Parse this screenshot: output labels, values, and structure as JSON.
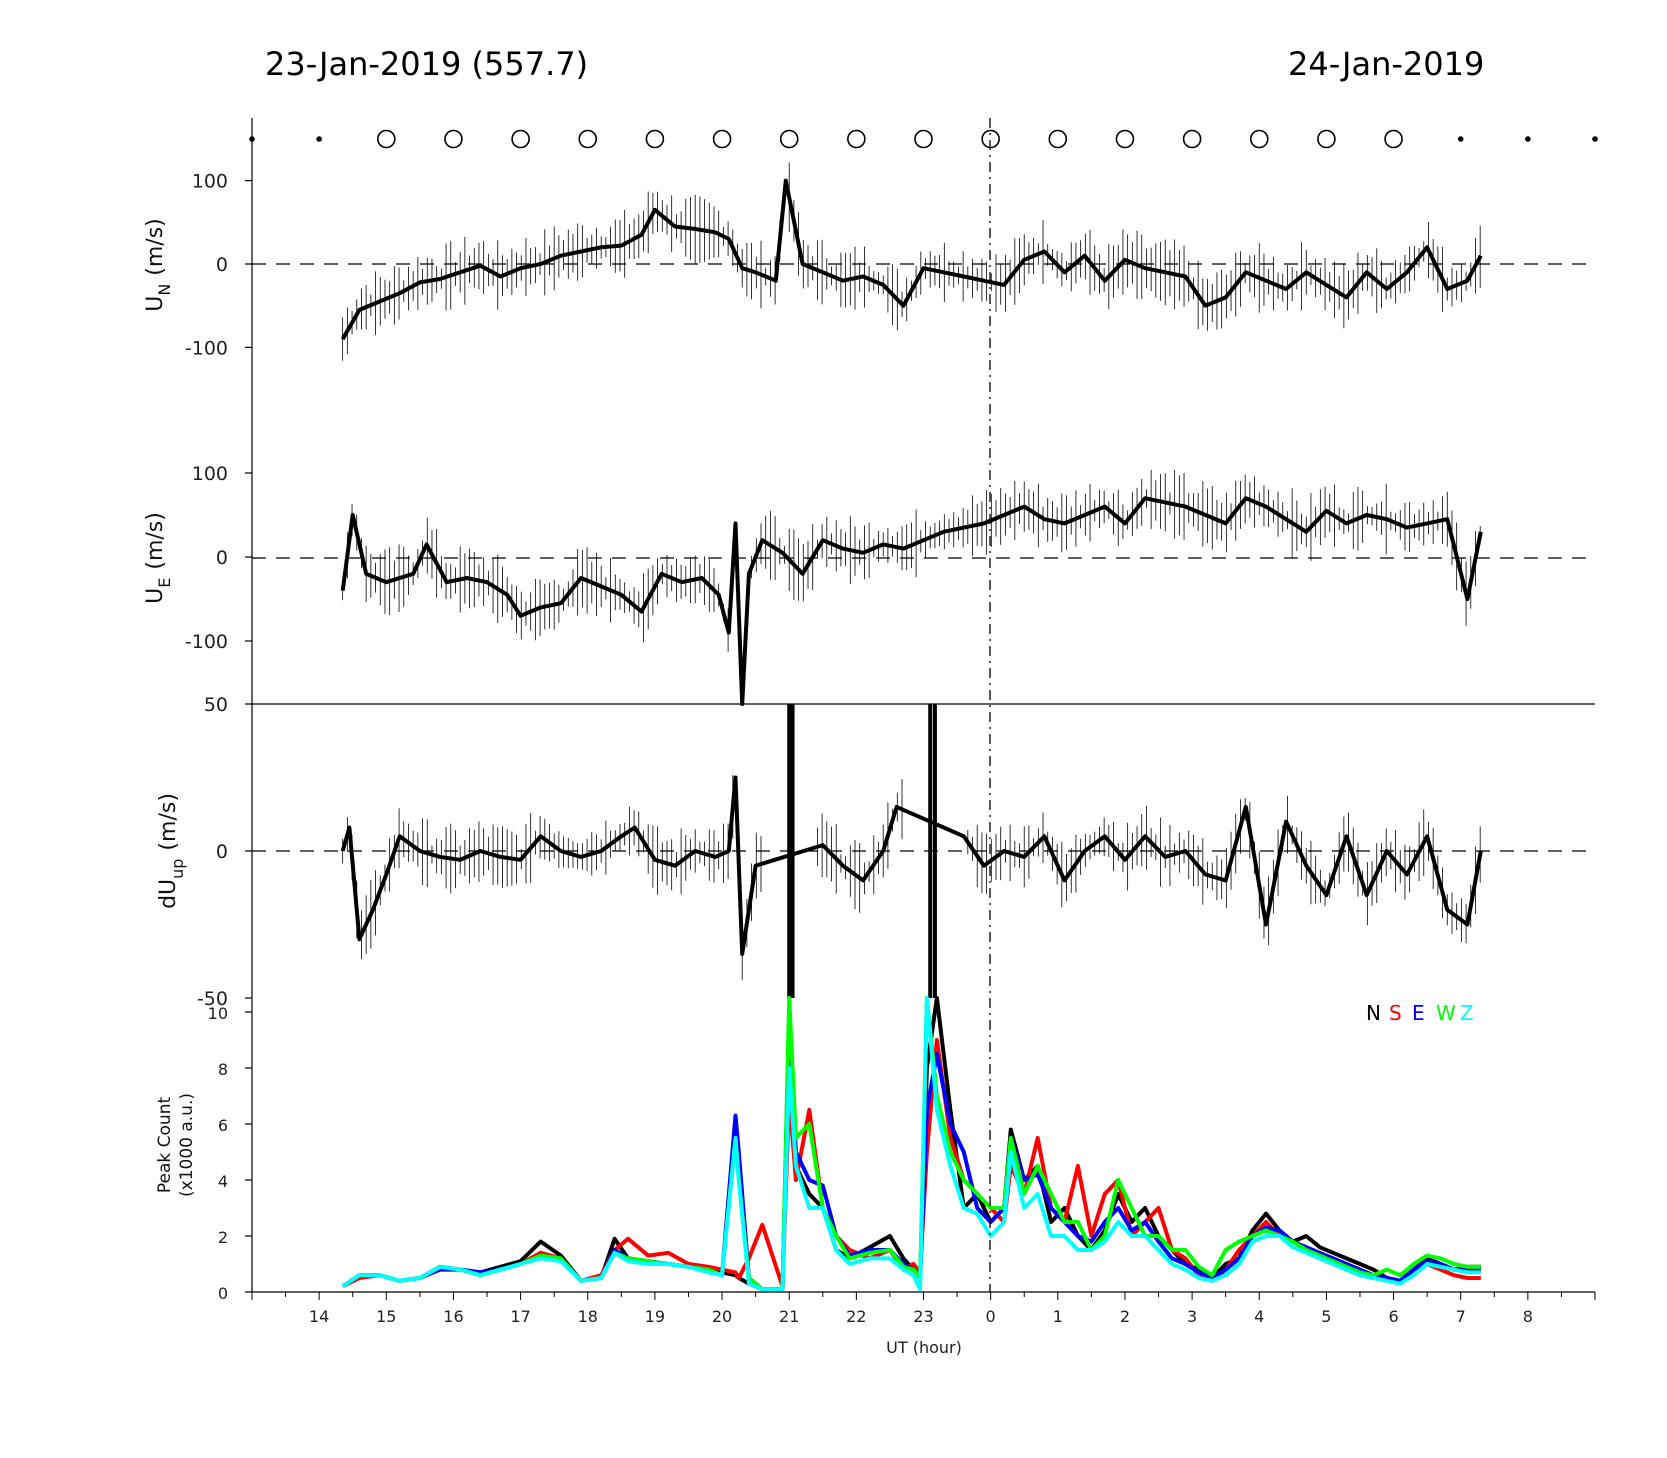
{
  "header": {
    "left_date": "23-Jan-2019 (557.7)",
    "right_date": "24-Jan-2019"
  },
  "chart_data": [
    {
      "type": "line",
      "panel": "U_N",
      "ylabel": "U_N (m/s)",
      "ylabel_main": "U",
      "ylabel_sub": "N",
      "ylabel_unit": "(m/s)",
      "ylim": [
        -175,
        175
      ],
      "yticks": [
        100,
        0,
        -100
      ],
      "ytick_labels": [
        "100",
        "0",
        "-100"
      ],
      "zero_line": "dashed",
      "series": [
        {
          "color": "#000000",
          "x": [
            14.35,
            14.6,
            14.9,
            15.2,
            15.5,
            15.8,
            16.1,
            16.4,
            16.7,
            17.0,
            17.3,
            17.6,
            17.9,
            18.2,
            18.5,
            18.8,
            19.0,
            19.3,
            19.6,
            19.9,
            20.1,
            20.3,
            20.5,
            20.8,
            20.95,
            21.2,
            21.5,
            21.8,
            22.1,
            22.4,
            22.7,
            23.0,
            23.3,
            23.6,
            23.9,
            24.2,
            24.5,
            24.8,
            25.1,
            25.4,
            25.7,
            26.0,
            26.3,
            26.6,
            26.9,
            27.2,
            27.5,
            27.8,
            28.1,
            28.4,
            28.7,
            29.0,
            29.3,
            29.6,
            29.9,
            30.2,
            30.5,
            30.8,
            31.1,
            31.3
          ],
          "y": [
            -90,
            -55,
            -45,
            -35,
            -22,
            -18,
            -10,
            -2,
            -15,
            -5,
            0,
            10,
            15,
            20,
            22,
            35,
            65,
            45,
            42,
            38,
            30,
            -5,
            -10,
            -20,
            100,
            0,
            -10,
            -20,
            -15,
            -25,
            -50,
            -5,
            -10,
            -15,
            -20,
            -25,
            5,
            15,
            -10,
            10,
            -20,
            5,
            -5,
            -10,
            -15,
            -50,
            -40,
            -10,
            -20,
            -30,
            -10,
            -25,
            -40,
            -10,
            -30,
            -10,
            20,
            -30,
            -20,
            10
          ]
        }
      ]
    },
    {
      "type": "line",
      "panel": "U_E",
      "ylabel": "U_E (m/s)",
      "ylabel_main": "U",
      "ylabel_sub": "E",
      "ylabel_unit": "(m/s)",
      "ylim": [
        -175,
        175
      ],
      "yticks": [
        100,
        0,
        -100
      ],
      "ytick_labels": [
        "100",
        "0",
        "-100"
      ],
      "zero_line": "dashed",
      "series": [
        {
          "color": "#000000",
          "x": [
            14.35,
            14.5,
            14.7,
            15.0,
            15.4,
            15.6,
            15.9,
            16.2,
            16.5,
            16.8,
            17.0,
            17.3,
            17.6,
            17.9,
            18.2,
            18.5,
            18.8,
            19.1,
            19.4,
            19.7,
            19.95,
            20.1,
            20.2,
            20.3,
            20.4,
            20.6,
            20.9,
            21.2,
            21.5,
            21.8,
            22.1,
            22.4,
            22.7,
            23.0,
            23.3,
            23.6,
            23.9,
            24.2,
            24.5,
            24.8,
            25.1,
            25.4,
            25.7,
            26.0,
            26.3,
            26.6,
            26.9,
            27.2,
            27.5,
            27.8,
            28.1,
            28.4,
            28.7,
            29.0,
            29.3,
            29.6,
            29.9,
            30.2,
            30.5,
            30.8,
            31.1,
            31.3
          ],
          "y": [
            -40,
            50,
            -20,
            -30,
            -20,
            15,
            -30,
            -25,
            -30,
            -45,
            -70,
            -60,
            -55,
            -25,
            -35,
            -45,
            -65,
            -20,
            -30,
            -25,
            -45,
            -90,
            40,
            -175,
            -20,
            20,
            5,
            -20,
            20,
            10,
            5,
            15,
            10,
            20,
            30,
            35,
            40,
            50,
            60,
            45,
            40,
            50,
            60,
            40,
            70,
            65,
            60,
            50,
            40,
            70,
            60,
            45,
            30,
            55,
            40,
            50,
            45,
            35,
            40,
            45,
            -50,
            30
          ]
        }
      ]
    },
    {
      "type": "line",
      "panel": "dU_up",
      "ylabel": "dU_up (m/s)",
      "ylabel_main": "dU",
      "ylabel_sub": "up",
      "ylabel_unit": "(m/s)",
      "ylim": [
        -50,
        50
      ],
      "yticks": [
        50,
        0,
        -50
      ],
      "ytick_labels": [
        "50",
        "0",
        "-50"
      ],
      "zero_line": "dashed",
      "series": [
        {
          "color": "#000000",
          "x": [
            14.35,
            14.45,
            14.6,
            14.8,
            15.0,
            15.2,
            15.5,
            15.8,
            16.1,
            16.4,
            16.7,
            17.0,
            17.3,
            17.6,
            17.9,
            18.2,
            18.5,
            18.7,
            19.0,
            19.3,
            19.6,
            19.9,
            20.1,
            20.2,
            20.3,
            20.5,
            21.5,
            21.8,
            22.1,
            22.4,
            22.6,
            23.6,
            23.9,
            24.2,
            24.5,
            24.8,
            25.1,
            25.4,
            25.7,
            26.0,
            26.3,
            26.6,
            26.9,
            27.2,
            27.5,
            27.8,
            28.1,
            28.4,
            28.7,
            29.0,
            29.3,
            29.6,
            29.9,
            30.2,
            30.5,
            30.8,
            31.1,
            31.3
          ],
          "y": [
            0,
            8,
            -30,
            -20,
            -8,
            5,
            0,
            -2,
            -3,
            0,
            -2,
            -3,
            5,
            0,
            -2,
            0,
            5,
            8,
            -3,
            -5,
            0,
            -2,
            0,
            25,
            -35,
            -5,
            2,
            -5,
            -10,
            0,
            15,
            5,
            -5,
            0,
            -2,
            5,
            -10,
            0,
            5,
            -3,
            5,
            -2,
            0,
            -8,
            -10,
            15,
            -25,
            10,
            -5,
            -15,
            5,
            -15,
            0,
            -8,
            5,
            -20,
            -25,
            0
          ]
        }
      ],
      "gaps_hours": [
        [
          20.6,
          21.4
        ],
        [
          22.7,
          23.6
        ]
      ]
    },
    {
      "type": "line",
      "panel": "peak_count",
      "ylabel": "Peak Count (x1000 a.u.)",
      "ylabel_line1": "Peak Count",
      "ylabel_line2": "(x1000 a.u.)",
      "ylim": [
        0,
        10
      ],
      "yticks": [
        0,
        2,
        4,
        6,
        8,
        10
      ],
      "ytick_labels": [
        "0",
        "2",
        "4",
        "6",
        "8",
        "10"
      ],
      "xlabel": "UT (hour)",
      "xticks_hours": [
        14,
        15,
        16,
        17,
        18,
        19,
        20,
        21,
        22,
        23,
        24,
        25,
        26,
        27,
        28,
        29,
        30,
        31,
        32
      ],
      "xtick_labels": [
        "14",
        "15",
        "16",
        "17",
        "18",
        "19",
        "20",
        "21",
        "22",
        "23",
        "0",
        "1",
        "2",
        "3",
        "4",
        "5",
        "6",
        "7",
        "8"
      ],
      "legend_letters": [
        "N",
        "S",
        "E",
        "W",
        "Z"
      ],
      "legend_placement": "top-right",
      "x": [
        14.35,
        14.6,
        14.9,
        15.2,
        15.5,
        15.8,
        16.1,
        16.4,
        16.7,
        17.0,
        17.3,
        17.6,
        17.9,
        18.2,
        18.4,
        18.6,
        18.9,
        19.2,
        19.5,
        19.8,
        20.0,
        20.2,
        20.25,
        20.4,
        20.6,
        20.9,
        21.0,
        21.1,
        21.3,
        21.5,
        21.7,
        21.9,
        22.2,
        22.5,
        22.7,
        22.85,
        22.95,
        23.05,
        23.2,
        23.4,
        23.6,
        23.8,
        24.0,
        24.2,
        24.3,
        24.5,
        24.7,
        24.9,
        25.1,
        25.3,
        25.5,
        25.7,
        25.9,
        26.1,
        26.3,
        26.5,
        26.7,
        26.9,
        27.1,
        27.3,
        27.5,
        27.7,
        27.9,
        28.1,
        28.3,
        28.5,
        28.7,
        28.9,
        29.1,
        29.3,
        29.5,
        29.7,
        29.9,
        30.1,
        30.3,
        30.5,
        30.7,
        30.9,
        31.1,
        31.3
      ],
      "series": [
        {
          "name": "N",
          "color": "#000000",
          "y": [
            0.2,
            0.6,
            0.6,
            0.4,
            0.5,
            0.9,
            0.8,
            0.7,
            0.9,
            1.1,
            1.8,
            1.3,
            0.4,
            0.5,
            1.9,
            1.2,
            1.1,
            1.0,
            0.9,
            0.8,
            0.7,
            0.6,
            0.5,
            0.3,
            0.1,
            0.1,
            10,
            4.5,
            3.5,
            3.0,
            1.5,
            1.2,
            1.6,
            2.0,
            1.2,
            0.8,
            0.5,
            8.0,
            10.5,
            6.5,
            3.0,
            3.5,
            2.5,
            3.0,
            5.8,
            4.0,
            4.5,
            2.5,
            3.0,
            2.0,
            1.5,
            2.2,
            3.5,
            2.5,
            3.0,
            2.0,
            1.5,
            1.0,
            0.8,
            0.5,
            1.0,
            1.2,
            2.2,
            2.8,
            2.2,
            1.8,
            2.0,
            1.6,
            1.4,
            1.2,
            1.0,
            0.8,
            0.5,
            0.4,
            0.8,
            1.2,
            1.0,
            0.8,
            0.9,
            0.9
          ]
        },
        {
          "name": "S",
          "color": "#ff0000",
          "y": [
            0.2,
            0.5,
            0.6,
            0.4,
            0.5,
            0.9,
            0.8,
            0.6,
            0.8,
            1.0,
            1.4,
            1.2,
            0.4,
            0.6,
            1.5,
            1.9,
            1.3,
            1.4,
            1.0,
            0.9,
            0.8,
            0.7,
            0.5,
            1.2,
            2.4,
            0.2,
            7.0,
            4.0,
            6.5,
            3.0,
            2.0,
            1.5,
            1.2,
            1.5,
            0.8,
            1.0,
            0.7,
            5.0,
            9.0,
            5.5,
            4.0,
            3.5,
            3.0,
            2.5,
            4.5,
            3.5,
            5.5,
            3.0,
            2.5,
            4.5,
            2.0,
            3.5,
            4.0,
            2.0,
            2.5,
            3.0,
            1.5,
            1.2,
            0.6,
            0.4,
            0.8,
            1.5,
            2.0,
            2.5,
            2.0,
            1.8,
            1.5,
            1.2,
            1.0,
            0.8,
            0.6,
            0.5,
            0.4,
            0.4,
            0.8,
            1.0,
            0.8,
            0.6,
            0.5,
            0.5
          ]
        },
        {
          "name": "E",
          "color": "#0000ff",
          "y": [
            0.2,
            0.6,
            0.6,
            0.4,
            0.5,
            0.8,
            0.8,
            0.7,
            0.8,
            1.0,
            1.3,
            1.2,
            0.4,
            0.5,
            1.5,
            1.2,
            1.1,
            1.0,
            0.9,
            0.8,
            0.6,
            6.3,
            5.0,
            0.5,
            0.1,
            0.1,
            9.5,
            5.0,
            4.0,
            3.8,
            2.0,
            1.3,
            1.5,
            1.5,
            1.0,
            0.8,
            0.5,
            6.5,
            8.5,
            6.0,
            5.0,
            3.0,
            2.5,
            3.0,
            5.5,
            4.0,
            4.2,
            3.0,
            2.5,
            2.0,
            1.8,
            2.5,
            3.0,
            2.2,
            2.5,
            1.8,
            1.2,
            1.0,
            0.7,
            0.5,
            0.8,
            1.2,
            2.0,
            2.3,
            2.2,
            1.8,
            1.6,
            1.4,
            1.2,
            1.0,
            0.8,
            0.6,
            0.5,
            0.4,
            0.8,
            1.1,
            1.0,
            0.8,
            0.8,
            0.8
          ]
        },
        {
          "name": "W",
          "color": "#00ff00",
          "y": [
            0.2,
            0.6,
            0.6,
            0.4,
            0.5,
            0.9,
            0.8,
            0.6,
            0.8,
            1.0,
            1.3,
            1.2,
            0.4,
            0.5,
            1.4,
            1.2,
            1.1,
            1.0,
            0.9,
            0.8,
            0.6,
            5.5,
            4.0,
            0.5,
            0.1,
            0.1,
            11.5,
            5.5,
            6.0,
            3.0,
            2.0,
            1.2,
            1.4,
            1.5,
            0.9,
            0.8,
            0.5,
            10.5,
            7.0,
            5.0,
            4.0,
            3.5,
            3.0,
            3.0,
            5.5,
            3.5,
            4.5,
            3.5,
            2.5,
            2.5,
            1.5,
            2.0,
            4.0,
            3.0,
            2.0,
            2.0,
            1.5,
            1.5,
            0.9,
            0.6,
            1.5,
            1.8,
            2.0,
            2.2,
            2.0,
            1.8,
            1.5,
            1.3,
            1.1,
            0.9,
            0.7,
            0.6,
            0.8,
            0.6,
            1.0,
            1.3,
            1.2,
            1.0,
            0.9,
            0.9
          ]
        },
        {
          "name": "Z",
          "color": "#00ffff",
          "y": [
            0.2,
            0.6,
            0.6,
            0.4,
            0.5,
            0.9,
            0.8,
            0.6,
            0.8,
            1.0,
            1.2,
            1.1,
            0.4,
            0.5,
            1.4,
            1.1,
            1.0,
            1.0,
            0.9,
            0.7,
            0.6,
            5.5,
            4.0,
            0.3,
            0.1,
            0.1,
            8.0,
            4.5,
            3.0,
            3.0,
            1.5,
            1.0,
            1.2,
            1.2,
            0.8,
            0.6,
            0.1,
            10.5,
            6.5,
            4.5,
            3.0,
            2.8,
            2.0,
            2.5,
            5.0,
            3.0,
            3.5,
            2.0,
            2.0,
            1.5,
            1.5,
            1.8,
            2.5,
            2.0,
            2.0,
            1.5,
            1.0,
            0.8,
            0.5,
            0.4,
            0.6,
            1.0,
            1.8,
            2.0,
            2.0,
            1.6,
            1.4,
            1.2,
            1.0,
            0.8,
            0.6,
            0.5,
            0.4,
            0.3,
            0.6,
            1.0,
            0.9,
            0.8,
            0.7,
            0.7
          ]
        }
      ]
    }
  ],
  "markers": {
    "x_hours": [
      13,
      14,
      15,
      16,
      17,
      18,
      19,
      20,
      21,
      22,
      23,
      24,
      25,
      26,
      27,
      28,
      29,
      30,
      31,
      32,
      33
    ],
    "kind": [
      "dot",
      "dot",
      "circle",
      "circle",
      "circle",
      "circle",
      "circle",
      "circle",
      "circle",
      "circle",
      "circle",
      "circle",
      "circle",
      "circle",
      "circle",
      "circle",
      "circle",
      "circle",
      "dot",
      "dot",
      "dot"
    ]
  }
}
